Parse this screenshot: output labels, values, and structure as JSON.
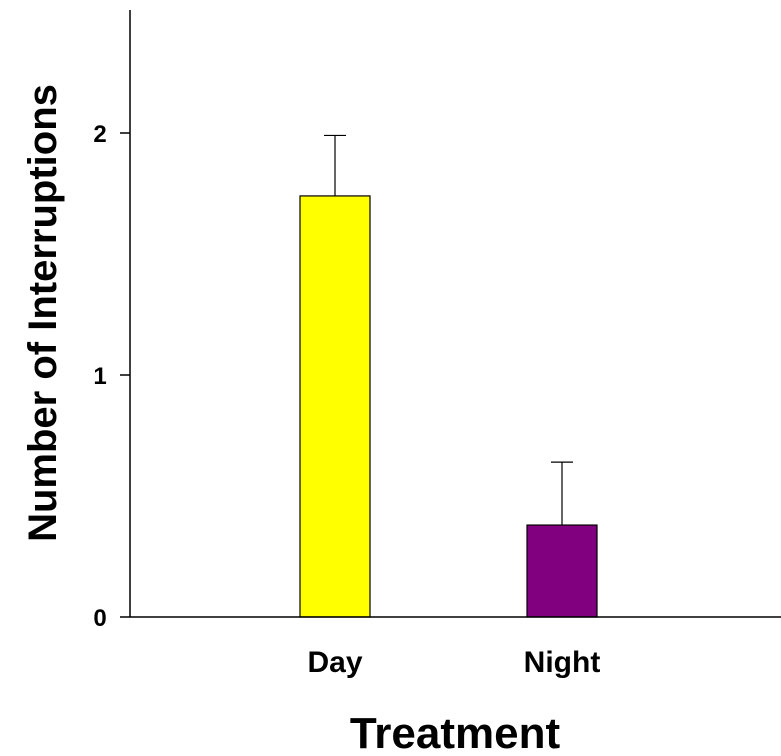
{
  "chart_data": {
    "type": "bar",
    "title": "",
    "xlabel": "Treatment",
    "ylabel": "Number of Interruptions",
    "categories": [
      "Day",
      "Night"
    ],
    "values": [
      1.74,
      0.38
    ],
    "errors": [
      0.25,
      0.26
    ],
    "colors": [
      "#ffff00",
      "#800080"
    ],
    "bar_edge_color": "#000000",
    "ylim": [
      0,
      2.5
    ],
    "yticks": [
      0,
      1,
      2
    ],
    "ytick_labels": [
      "0",
      "1",
      "2"
    ],
    "grid": false,
    "legend": "none",
    "error_bars": "upper-only"
  }
}
